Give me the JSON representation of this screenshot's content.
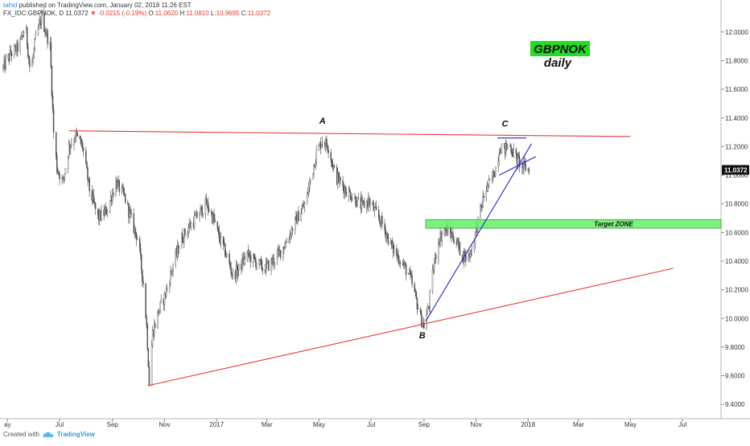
{
  "header": {
    "author": "tahid",
    "published": "published on TradingView.com, January 02, 2018 11:26 EST",
    "symbol": "FX_IDC:GBPNOK, D",
    "last": "11.0372",
    "change_arrow": "▼",
    "change": "-0.0215 (-0.19%)",
    "o_label": "O:",
    "o": "11.0620",
    "h_label": "H:",
    "h": "11.0810",
    "l_label": "L:",
    "l": "10.9695",
    "c_label": "C:",
    "c": "11.0372"
  },
  "footer": {
    "created_with": "Created with",
    "brand": "TradingView",
    "logo_icon": "tradingview-cloud-icon"
  },
  "chart_data": {
    "type": "candlestick",
    "symbol": "GBPNOK",
    "timeframe": "daily",
    "ylim": [
      9.3,
      12.1
    ],
    "y_ticks": [
      9.4,
      9.6,
      9.8,
      10.0,
      10.2,
      10.4,
      10.6,
      10.8,
      11.0,
      11.2,
      11.4,
      11.6,
      11.8,
      12.0
    ],
    "y_tick_labels": [
      "9.4000",
      "9.6000",
      "9.8000",
      "10.0000",
      "10.2000",
      "10.4000",
      "10.6000",
      "10.8000",
      "11.0000",
      "11.2000",
      "11.4000",
      "11.6000",
      "11.8000",
      "12.0000"
    ],
    "x_ticks": [
      {
        "date": "2016-05-01",
        "label": "ay"
      },
      {
        "date": "2016-07-01",
        "label": "Jul"
      },
      {
        "date": "2016-09-01",
        "label": "Sep"
      },
      {
        "date": "2016-11-01",
        "label": "Nov"
      },
      {
        "date": "2017-01-01",
        "label": "2017"
      },
      {
        "date": "2017-03-01",
        "label": "Mar"
      },
      {
        "date": "2017-05-01",
        "label": "May"
      },
      {
        "date": "2017-07-01",
        "label": "Jul"
      },
      {
        "date": "2017-09-01",
        "label": "Sep"
      },
      {
        "date": "2017-11-01",
        "label": "Nov"
      },
      {
        "date": "2018-01-01",
        "label": "2018"
      },
      {
        "date": "2018-03-01",
        "label": "Mar"
      },
      {
        "date": "2018-05-01",
        "label": "May"
      },
      {
        "date": "2018-07-01",
        "label": "Jul"
      }
    ],
    "x_range": [
      "2016-04-26",
      "2018-08-15"
    ],
    "last_price": {
      "value": 11.0372,
      "label": "11.0372",
      "color": "#111111"
    },
    "price_path": [
      [
        "2016-04-26",
        11.75
      ],
      [
        "2016-05-05",
        11.85
      ],
      [
        "2016-05-15",
        11.9
      ],
      [
        "2016-05-22",
        12.05
      ],
      [
        "2016-05-28",
        11.7
      ],
      [
        "2016-06-03",
        11.95
      ],
      [
        "2016-06-10",
        12.1
      ],
      [
        "2016-06-20",
        11.9
      ],
      [
        "2016-06-24",
        11.3
      ],
      [
        "2016-06-28",
        11.05
      ],
      [
        "2016-07-05",
        10.95
      ],
      [
        "2016-07-12",
        11.2
      ],
      [
        "2016-07-20",
        11.28
      ],
      [
        "2016-07-28",
        11.2
      ],
      [
        "2016-08-05",
        10.9
      ],
      [
        "2016-08-15",
        10.7
      ],
      [
        "2016-08-25",
        10.75
      ],
      [
        "2016-09-05",
        10.95
      ],
      [
        "2016-09-15",
        10.85
      ],
      [
        "2016-09-25",
        10.65
      ],
      [
        "2016-10-01",
        10.55
      ],
      [
        "2016-10-07",
        10.25
      ],
      [
        "2016-10-11",
        9.95
      ],
      [
        "2016-10-13",
        9.7
      ],
      [
        "2016-10-14",
        9.55
      ],
      [
        "2016-10-18",
        9.9
      ],
      [
        "2016-10-25",
        10.05
      ],
      [
        "2016-11-01",
        10.15
      ],
      [
        "2016-11-10",
        10.35
      ],
      [
        "2016-11-20",
        10.55
      ],
      [
        "2016-12-01",
        10.65
      ],
      [
        "2016-12-10",
        10.72
      ],
      [
        "2016-12-20",
        10.8
      ],
      [
        "2016-12-28",
        10.7
      ],
      [
        "2017-01-05",
        10.55
      ],
      [
        "2017-01-12",
        10.45
      ],
      [
        "2017-01-20",
        10.3
      ],
      [
        "2017-01-28",
        10.35
      ],
      [
        "2017-02-05",
        10.45
      ],
      [
        "2017-02-15",
        10.4
      ],
      [
        "2017-02-25",
        10.35
      ],
      [
        "2017-03-05",
        10.38
      ],
      [
        "2017-03-15",
        10.45
      ],
      [
        "2017-03-25",
        10.55
      ],
      [
        "2017-04-05",
        10.7
      ],
      [
        "2017-04-15",
        10.8
      ],
      [
        "2017-04-22",
        11.0
      ],
      [
        "2017-04-28",
        11.15
      ],
      [
        "2017-05-05",
        11.25
      ],
      [
        "2017-05-12",
        11.2
      ],
      [
        "2017-05-20",
        11.0
      ],
      [
        "2017-06-01",
        10.9
      ],
      [
        "2017-06-10",
        10.85
      ],
      [
        "2017-06-20",
        10.78
      ],
      [
        "2017-06-28",
        10.82
      ],
      [
        "2017-07-05",
        10.75
      ],
      [
        "2017-07-15",
        10.65
      ],
      [
        "2017-07-25",
        10.5
      ],
      [
        "2017-08-05",
        10.4
      ],
      [
        "2017-08-15",
        10.3
      ],
      [
        "2017-08-22",
        10.15
      ],
      [
        "2017-08-28",
        10.0
      ],
      [
        "2017-09-01",
        9.95
      ],
      [
        "2017-09-07",
        10.1
      ],
      [
        "2017-09-12",
        10.35
      ],
      [
        "2017-09-18",
        10.55
      ],
      [
        "2017-09-25",
        10.62
      ],
      [
        "2017-10-01",
        10.6
      ],
      [
        "2017-10-08",
        10.55
      ],
      [
        "2017-10-15",
        10.45
      ],
      [
        "2017-10-22",
        10.42
      ],
      [
        "2017-10-28",
        10.5
      ],
      [
        "2017-11-02",
        10.65
      ],
      [
        "2017-11-08",
        10.8
      ],
      [
        "2017-11-12",
        10.9
      ],
      [
        "2017-11-18",
        10.95
      ],
      [
        "2017-11-24",
        11.05
      ],
      [
        "2017-11-29",
        11.2
      ],
      [
        "2017-12-05",
        11.18
      ],
      [
        "2017-12-10",
        11.22
      ],
      [
        "2017-12-15",
        11.15
      ],
      [
        "2017-12-20",
        11.1
      ],
      [
        "2017-12-26",
        11.06
      ],
      [
        "2017-12-29",
        11.05
      ],
      [
        "2018-01-02",
        11.0372
      ]
    ],
    "annotations": {
      "title": "GBPNOK",
      "subtitle": "daily",
      "title_bg": "#22dd22",
      "labels": [
        {
          "text": "A",
          "date": "2017-05-05",
          "value": 11.36
        },
        {
          "text": "B",
          "date": "2017-08-30",
          "value": 9.86
        },
        {
          "text": "C",
          "date": "2017-12-05",
          "value": 11.34
        }
      ],
      "target_zone": {
        "label": "Target ZONE",
        "from": "2017-09-03",
        "to": "2018-08-15",
        "y_low": 10.63,
        "y_high": 10.69,
        "color": "#66ee66"
      },
      "lines": [
        {
          "name": "neckline",
          "color": "#e53935",
          "from": [
            "2016-07-12",
            11.31
          ],
          "to": [
            "2018-05-01",
            11.27
          ]
        },
        {
          "name": "support-trendline",
          "color": "#e53935",
          "from": [
            "2016-10-12",
            9.53
          ],
          "to": [
            "2018-06-20",
            10.35
          ]
        },
        {
          "name": "rising-trendline",
          "color": "#2222cc",
          "from": [
            "2017-09-03",
            9.98
          ],
          "to": [
            "2018-01-05",
            11.22
          ]
        },
        {
          "name": "wedge-top",
          "color": "#2222cc",
          "from": [
            "2017-11-26",
            11.26
          ],
          "to": [
            "2017-12-30",
            11.26
          ]
        },
        {
          "name": "wedge-lower",
          "color": "#2222cc",
          "from": [
            "2017-11-28",
            11.0
          ],
          "to": [
            "2018-01-10",
            11.13
          ]
        }
      ]
    }
  }
}
